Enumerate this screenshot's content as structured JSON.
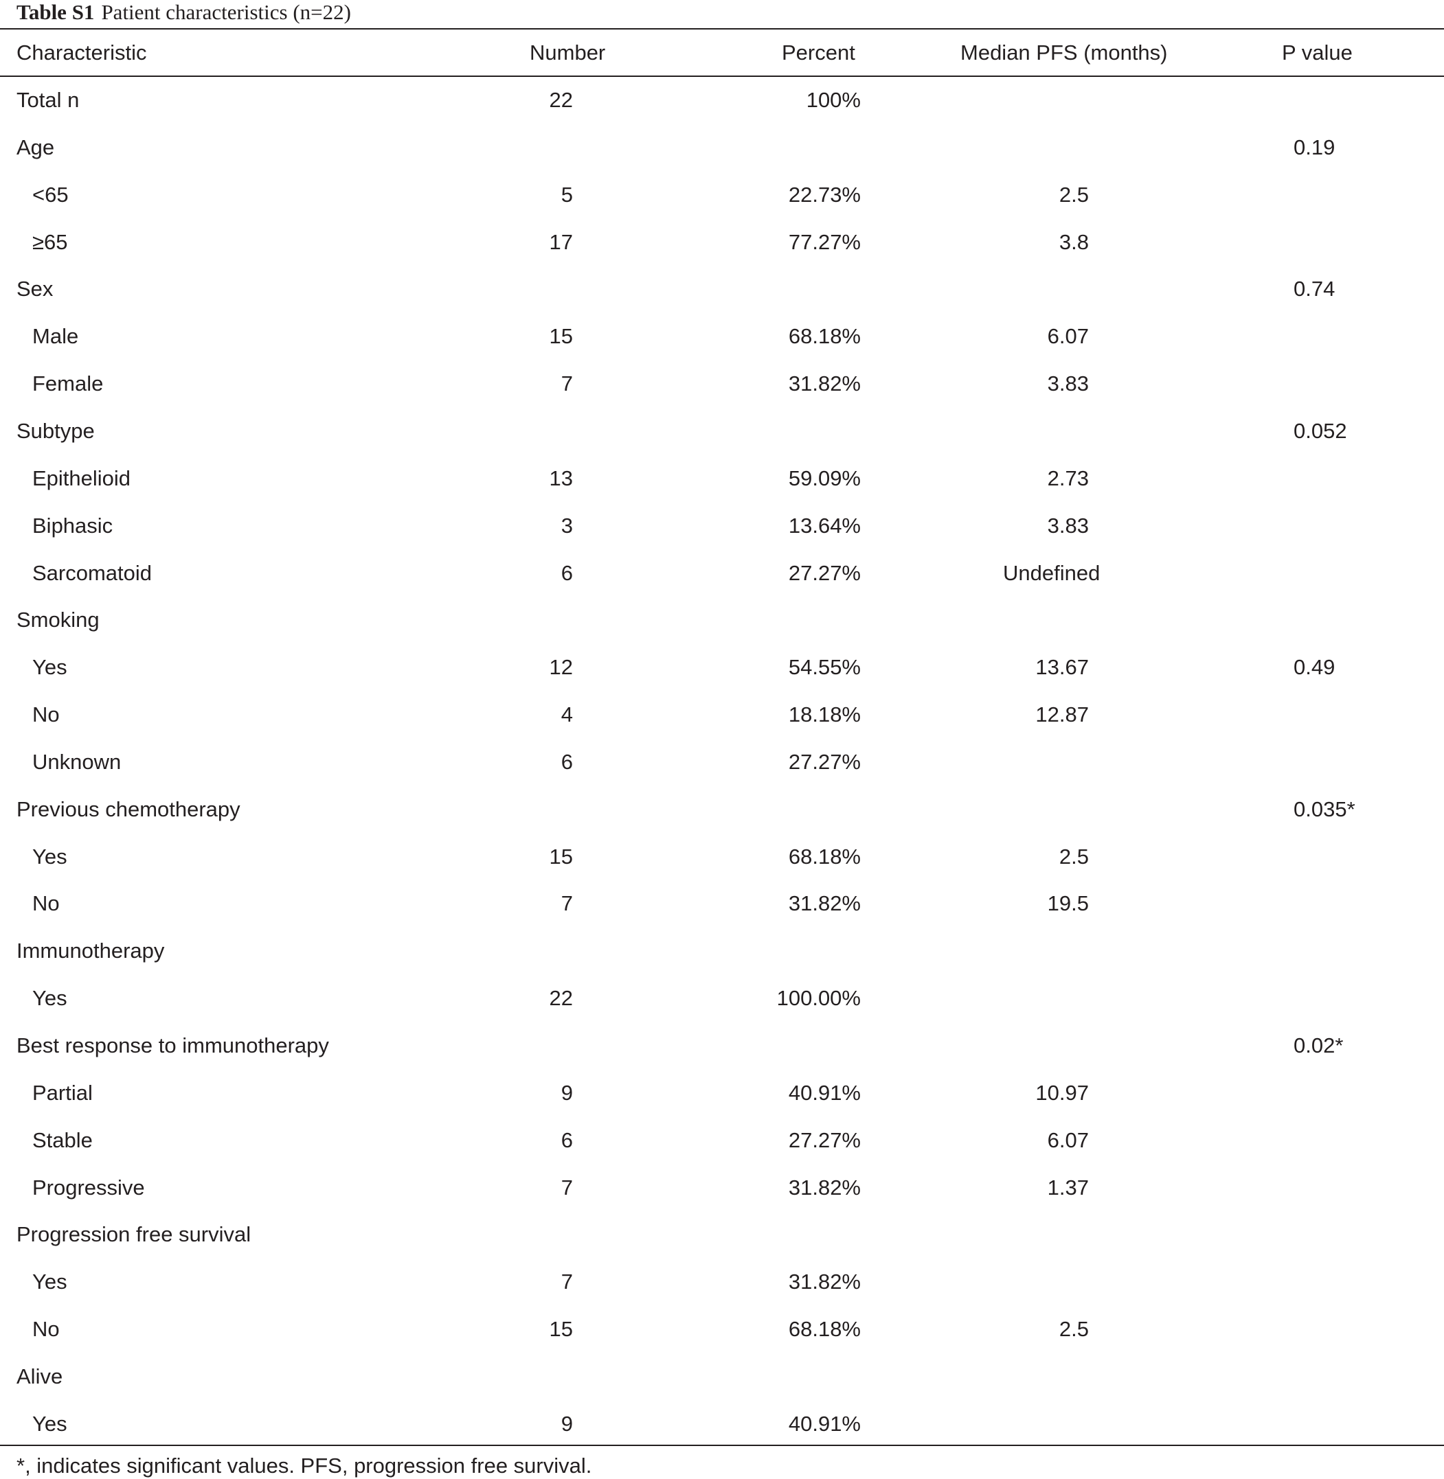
{
  "caption": {
    "label": "Table S1",
    "title": "Patient characteristics (n=22)"
  },
  "columns": [
    "Characteristic",
    "Number",
    "Percent",
    "Median PFS (months)",
    "P value"
  ],
  "rows": [
    {
      "label": "Total n",
      "sub": false,
      "number": "22",
      "percent": "100%",
      "pfs": "",
      "p": ""
    },
    {
      "label": "Age",
      "sub": false,
      "number": "",
      "percent": "",
      "pfs": "",
      "p": "0.19"
    },
    {
      "label": "<65",
      "sub": true,
      "number": "5",
      "percent": "22.73%",
      "pfs": "2.5",
      "p": ""
    },
    {
      "label": "≥65",
      "sub": true,
      "number": "17",
      "percent": "77.27%",
      "pfs": "3.8",
      "p": ""
    },
    {
      "label": "Sex",
      "sub": false,
      "number": "",
      "percent": "",
      "pfs": "",
      "p": "0.74"
    },
    {
      "label": "Male",
      "sub": true,
      "number": "15",
      "percent": "68.18%",
      "pfs": "6.07",
      "p": ""
    },
    {
      "label": "Female",
      "sub": true,
      "number": "7",
      "percent": "31.82%",
      "pfs": "3.83",
      "p": ""
    },
    {
      "label": "Subtype",
      "sub": false,
      "number": "",
      "percent": "",
      "pfs": "",
      "p": "0.052"
    },
    {
      "label": "Epithelioid",
      "sub": true,
      "number": "13",
      "percent": "59.09%",
      "pfs": "2.73",
      "p": ""
    },
    {
      "label": "Biphasic",
      "sub": true,
      "number": "3",
      "percent": "13.64%",
      "pfs": "3.83",
      "p": ""
    },
    {
      "label": "Sarcomatoid",
      "sub": true,
      "number": "6",
      "percent": "27.27%",
      "pfs": "Undefined",
      "p": ""
    },
    {
      "label": "Smoking",
      "sub": false,
      "number": "",
      "percent": "",
      "pfs": "",
      "p": ""
    },
    {
      "label": "Yes",
      "sub": true,
      "number": "12",
      "percent": "54.55%",
      "pfs": "13.67",
      "p": "0.49"
    },
    {
      "label": "No",
      "sub": true,
      "number": "4",
      "percent": "18.18%",
      "pfs": "12.87",
      "p": ""
    },
    {
      "label": "Unknown",
      "sub": true,
      "number": "6",
      "percent": "27.27%",
      "pfs": "",
      "p": ""
    },
    {
      "label": "Previous chemotherapy",
      "sub": false,
      "number": "",
      "percent": "",
      "pfs": "",
      "p": "0.035*"
    },
    {
      "label": "Yes",
      "sub": true,
      "number": "15",
      "percent": "68.18%",
      "pfs": "2.5",
      "p": ""
    },
    {
      "label": "No",
      "sub": true,
      "number": "7",
      "percent": "31.82%",
      "pfs": "19.5",
      "p": ""
    },
    {
      "label": "Immunotherapy",
      "sub": false,
      "number": "",
      "percent": "",
      "pfs": "",
      "p": ""
    },
    {
      "label": "Yes",
      "sub": true,
      "number": "22",
      "percent": "100.00%",
      "pfs": "",
      "p": ""
    },
    {
      "label": "Best response to immunotherapy",
      "sub": false,
      "number": "",
      "percent": "",
      "pfs": "",
      "p": "0.02*"
    },
    {
      "label": "Partial",
      "sub": true,
      "number": "9",
      "percent": "40.91%",
      "pfs": "10.97",
      "p": ""
    },
    {
      "label": "Stable",
      "sub": true,
      "number": "6",
      "percent": "27.27%",
      "pfs": "6.07",
      "p": ""
    },
    {
      "label": "Progressive",
      "sub": true,
      "number": "7",
      "percent": "31.82%",
      "pfs": "1.37",
      "p": ""
    },
    {
      "label": "Progression free survival",
      "sub": false,
      "number": "",
      "percent": "",
      "pfs": "",
      "p": ""
    },
    {
      "label": "Yes",
      "sub": true,
      "number": "7",
      "percent": "31.82%",
      "pfs": "",
      "p": ""
    },
    {
      "label": "No",
      "sub": true,
      "number": "15",
      "percent": "68.18%",
      "pfs": "2.5",
      "p": ""
    },
    {
      "label": "Alive",
      "sub": false,
      "number": "",
      "percent": "",
      "pfs": "",
      "p": ""
    },
    {
      "label": "Yes",
      "sub": true,
      "number": "9",
      "percent": "40.91%",
      "pfs": "",
      "p": ""
    }
  ],
  "footnote": "*, indicates significant values. PFS, progression free survival."
}
